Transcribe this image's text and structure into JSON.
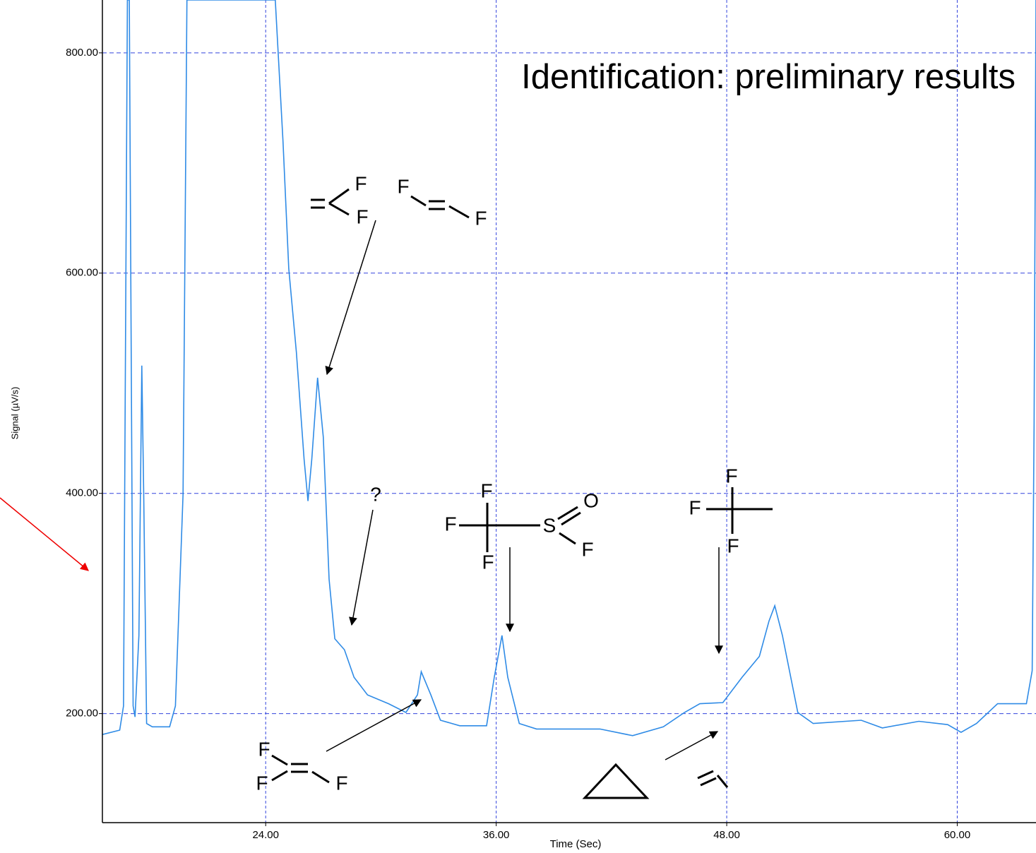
{
  "chart_data": {
    "type": "line",
    "title": "Identification: preliminary results",
    "x_label": "Time (Sec)",
    "y_label": "Signal (µV/s)",
    "color": "#2f8be6",
    "grid": true,
    "xlim": [
      15.5,
      64.1
    ],
    "ylim": [
      101,
      848
    ],
    "xticks": [
      {
        "value": 24,
        "label": "24.00"
      },
      {
        "value": 36,
        "label": "36.00"
      },
      {
        "value": 48,
        "label": "48.00"
      },
      {
        "value": 60,
        "label": "60.00"
      }
    ],
    "yticks": [
      {
        "value": 200,
        "label": "200.00"
      },
      {
        "value": 400,
        "label": "400.00"
      },
      {
        "value": 600,
        "label": "600.00"
      },
      {
        "value": 800,
        "label": "800.00"
      }
    ],
    "x": [
      15.5,
      16.4,
      16.6,
      16.8,
      16.9,
      17.1,
      17.2,
      17.4,
      17.55,
      17.65,
      17.8,
      18.1,
      19.0,
      19.3,
      19.7,
      19.9,
      24.5,
      24.9,
      25.2,
      25.6,
      26.0,
      26.2,
      26.4,
      26.7,
      27.0,
      27.3,
      27.6,
      28.1,
      28.6,
      29.3,
      30.4,
      31.3,
      31.9,
      32.1,
      32.6,
      33.1,
      34.1,
      35.5,
      35.9,
      36.3,
      36.6,
      37.2,
      38.1,
      41.4,
      43.1,
      44.7,
      45.8,
      46.6,
      47.8,
      48.8,
      49.7,
      50.2,
      50.5,
      50.9,
      51.7,
      52.5,
      55.0,
      56.1,
      58.0,
      59.5,
      60.2,
      61.0,
      62.1,
      63.6,
      63.9,
      64.0,
      64.1
    ],
    "values": [
      181,
      185,
      207,
      848,
      848,
      207,
      197,
      271,
      516,
      399,
      191,
      188,
      188,
      207,
      399,
      848,
      848,
      720,
      604,
      528,
      431,
      393,
      431,
      505,
      451,
      322,
      268,
      258,
      233,
      217,
      209,
      201,
      217,
      238,
      217,
      194,
      189,
      189,
      233,
      271,
      233,
      191,
      186,
      186,
      180,
      188,
      201,
      209,
      210,
      233,
      252,
      284,
      298,
      271,
      201,
      191,
      194,
      187,
      193,
      190,
      183,
      191,
      209,
      209,
      239,
      463,
      848
    ],
    "annotations": [
      "F",
      "F",
      "F",
      "F",
      "?",
      "F",
      "F",
      "F",
      "S",
      "O",
      "F",
      "F",
      "F",
      "F",
      "F",
      "F",
      "F"
    ]
  }
}
